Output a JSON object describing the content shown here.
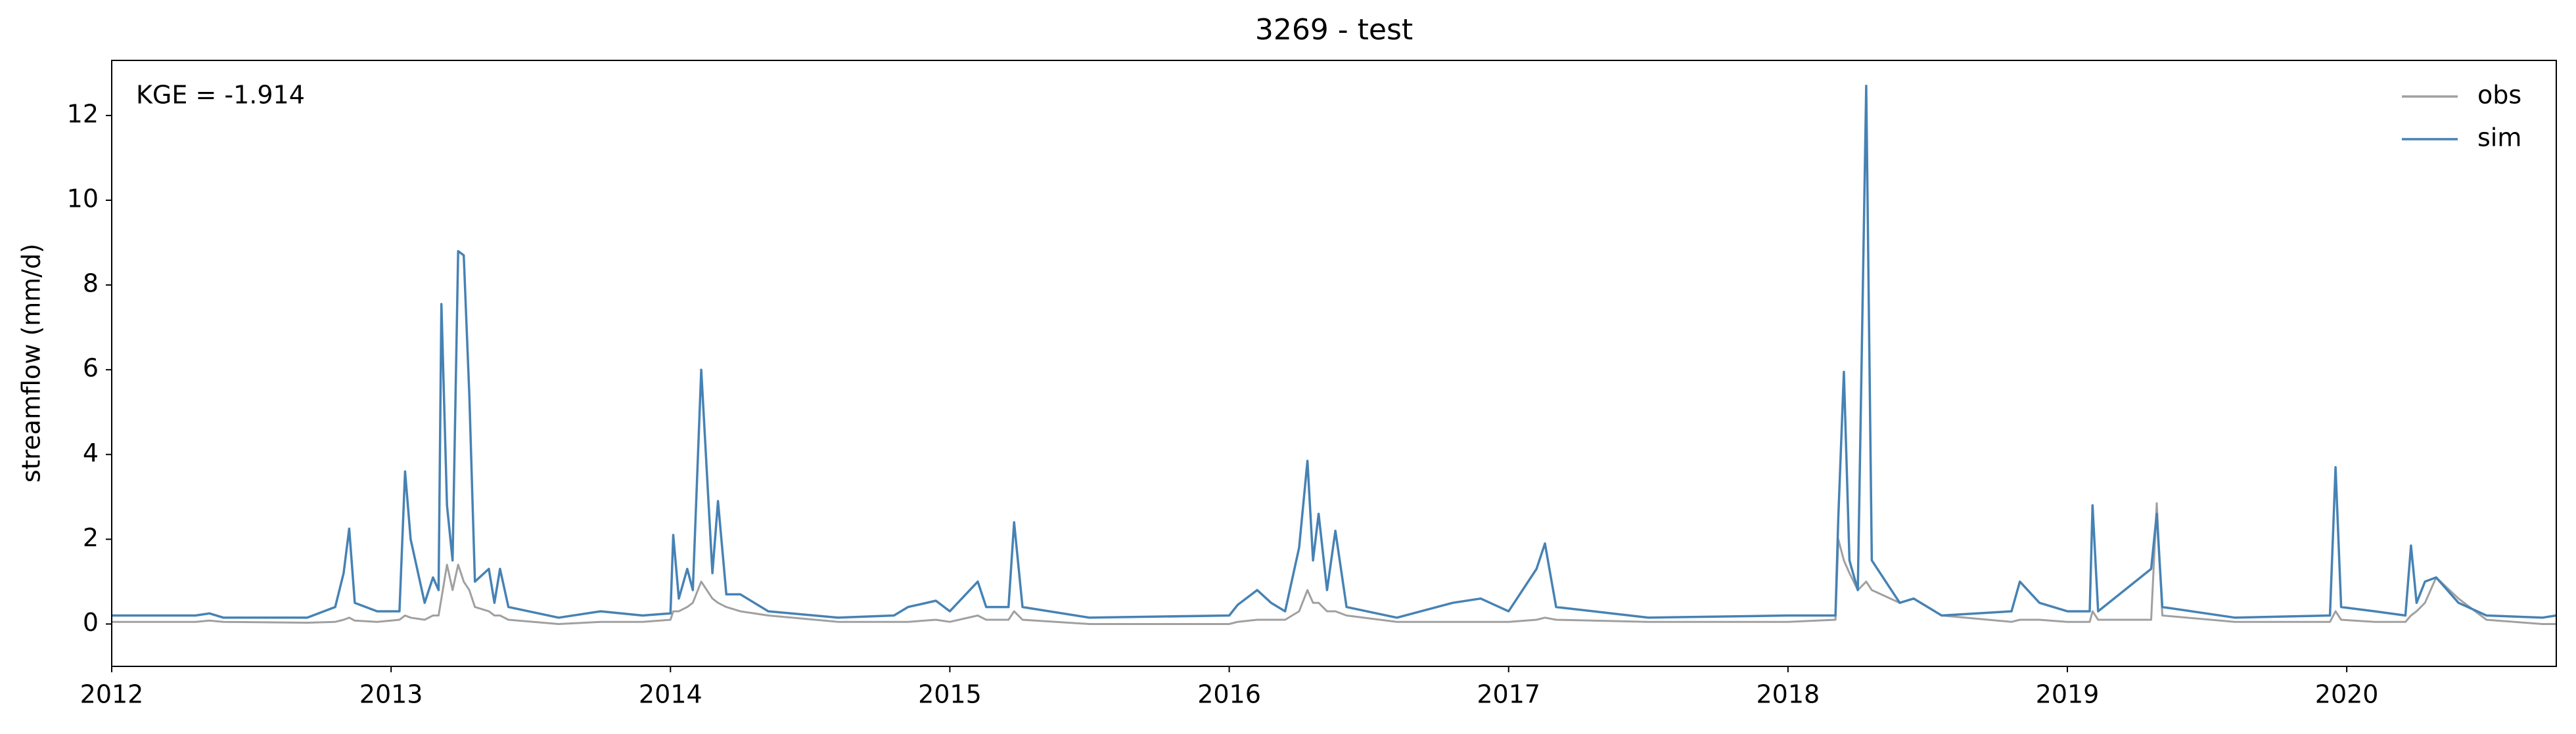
{
  "chart_data": {
    "type": "line",
    "title": "3269 - test",
    "ylabel": "streamflow (mm/d)",
    "annotation": "KGE = -1.914",
    "legend": "upper right",
    "x": [
      2012.0,
      2012.3,
      2012.35,
      2012.4,
      2012.7,
      2012.8,
      2012.83,
      2012.85,
      2012.87,
      2012.95,
      2013.03,
      2013.05,
      2013.07,
      2013.12,
      2013.15,
      2013.17,
      2013.18,
      2013.2,
      2013.22,
      2013.24,
      2013.26,
      2013.28,
      2013.3,
      2013.35,
      2013.37,
      2013.39,
      2013.42,
      2013.6,
      2013.75,
      2013.9,
      2014.0,
      2014.01,
      2014.03,
      2014.06,
      2014.08,
      2014.11,
      2014.13,
      2014.15,
      2014.17,
      2014.2,
      2014.25,
      2014.35,
      2014.6,
      2014.8,
      2014.85,
      2014.95,
      2015.0,
      2015.1,
      2015.13,
      2015.21,
      2015.23,
      2015.26,
      2015.5,
      2016.0,
      2016.03,
      2016.1,
      2016.15,
      2016.2,
      2016.25,
      2016.28,
      2016.3,
      2016.32,
      2016.35,
      2016.38,
      2016.42,
      2016.6,
      2016.8,
      2016.9,
      2017.0,
      2017.1,
      2017.13,
      2017.17,
      2017.5,
      2018.0,
      2018.17,
      2018.18,
      2018.2,
      2018.22,
      2018.25,
      2018.28,
      2018.3,
      2018.4,
      2018.45,
      2018.55,
      2018.8,
      2018.83,
      2018.9,
      2019.0,
      2019.08,
      2019.09,
      2019.11,
      2019.3,
      2019.32,
      2019.34,
      2019.6,
      2019.94,
      2019.96,
      2019.98,
      2020.1,
      2020.21,
      2020.23,
      2020.25,
      2020.28,
      2020.32,
      2020.4,
      2020.5,
      2020.7,
      2020.75
    ],
    "series": [
      {
        "name": "obs",
        "color": "#a0a0a0",
        "values": [
          0.05,
          0.05,
          0.08,
          0.05,
          0.03,
          0.05,
          0.1,
          0.15,
          0.08,
          0.05,
          0.1,
          0.2,
          0.15,
          0.1,
          0.2,
          0.2,
          0.6,
          1.4,
          0.8,
          1.4,
          1.0,
          0.8,
          0.4,
          0.3,
          0.2,
          0.2,
          0.1,
          0.0,
          0.05,
          0.05,
          0.1,
          0.3,
          0.3,
          0.4,
          0.5,
          1.0,
          0.8,
          0.6,
          0.5,
          0.4,
          0.3,
          0.2,
          0.05,
          0.05,
          0.05,
          0.1,
          0.05,
          0.2,
          0.1,
          0.1,
          0.3,
          0.1,
          0.0,
          0.0,
          0.05,
          0.1,
          0.1,
          0.1,
          0.3,
          0.8,
          0.5,
          0.5,
          0.3,
          0.3,
          0.2,
          0.05,
          0.05,
          0.05,
          0.05,
          0.1,
          0.15,
          0.1,
          0.05,
          0.05,
          0.1,
          2.0,
          1.5,
          1.2,
          0.8,
          1.0,
          0.8,
          0.5,
          0.6,
          0.2,
          0.05,
          0.1,
          0.1,
          0.05,
          0.05,
          0.3,
          0.1,
          0.1,
          2.85,
          0.2,
          0.05,
          0.05,
          0.3,
          0.1,
          0.05,
          0.05,
          0.2,
          0.3,
          0.5,
          1.1,
          0.6,
          0.1,
          0.0,
          0.0
        ]
      },
      {
        "name": "sim",
        "color": "#4682b4",
        "values": [
          0.2,
          0.2,
          0.25,
          0.15,
          0.15,
          0.4,
          1.2,
          2.25,
          0.5,
          0.3,
          0.3,
          3.6,
          2.0,
          0.5,
          1.1,
          0.8,
          7.55,
          2.8,
          1.5,
          8.8,
          8.7,
          5.4,
          1.0,
          1.3,
          0.5,
          1.3,
          0.4,
          0.15,
          0.3,
          0.2,
          0.25,
          2.1,
          0.6,
          1.3,
          0.8,
          6.0,
          3.6,
          1.2,
          2.9,
          0.7,
          0.7,
          0.3,
          0.15,
          0.2,
          0.4,
          0.55,
          0.3,
          1.0,
          0.4,
          0.4,
          2.4,
          0.4,
          0.15,
          0.2,
          0.45,
          0.8,
          0.5,
          0.3,
          1.8,
          3.85,
          1.5,
          2.6,
          0.8,
          2.2,
          0.4,
          0.15,
          0.5,
          0.6,
          0.3,
          1.3,
          1.9,
          0.4,
          0.15,
          0.2,
          0.2,
          2.5,
          5.95,
          1.5,
          0.8,
          12.7,
          1.5,
          0.5,
          0.6,
          0.2,
          0.3,
          1.0,
          0.5,
          0.3,
          0.3,
          2.8,
          0.3,
          1.3,
          2.6,
          0.4,
          0.15,
          0.2,
          3.7,
          0.4,
          0.3,
          0.2,
          1.85,
          0.5,
          1.0,
          1.1,
          0.5,
          0.2,
          0.15,
          0.2
        ]
      }
    ],
    "xlim": [
      2012,
      2020.75
    ],
    "xticks": [
      2012,
      2013,
      2014,
      2015,
      2016,
      2017,
      2018,
      2019,
      2020
    ],
    "ylim": [
      -1,
      13.3
    ],
    "yticks": [
      0,
      2,
      4,
      6,
      8,
      10,
      12
    ]
  }
}
